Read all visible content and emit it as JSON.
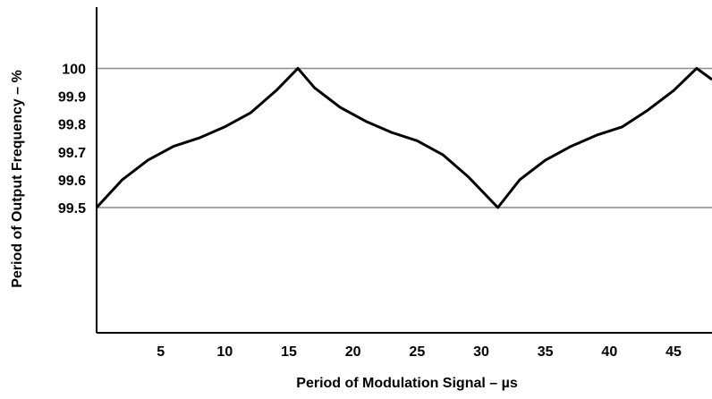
{
  "chart_data": {
    "type": "line",
    "title": "",
    "xlabel": "Period of Modulation Signal – µs",
    "ylabel": "Period of Output Frequency – %",
    "xlim": [
      0,
      48
    ],
    "ylim": [
      99.05,
      100.22
    ],
    "x_ticks": [
      "5",
      "10",
      "15",
      "20",
      "25",
      "30",
      "35",
      "40",
      "45"
    ],
    "y_ticks": [
      "99.5",
      "99.6",
      "99.7",
      "99.8",
      "99.9",
      "100"
    ],
    "reference_lines": [
      100,
      99.5
    ],
    "grid": false,
    "series": [
      {
        "x": [
          0,
          2,
          4,
          6,
          8,
          10,
          12,
          14,
          15.7,
          17,
          19,
          21,
          23,
          25,
          27,
          29,
          31.3,
          33,
          35,
          37,
          39,
          41,
          43,
          45,
          46.8,
          48
        ],
        "values": [
          99.5,
          99.6,
          99.67,
          99.72,
          99.75,
          99.79,
          99.84,
          99.92,
          100.0,
          99.93,
          99.86,
          99.81,
          99.77,
          99.74,
          99.69,
          99.61,
          99.5,
          99.6,
          99.67,
          99.72,
          99.76,
          99.79,
          99.85,
          99.92,
          100.0,
          99.96
        ]
      }
    ],
    "colors": {
      "line": "#000000",
      "reference": "#8a8a8a"
    }
  }
}
